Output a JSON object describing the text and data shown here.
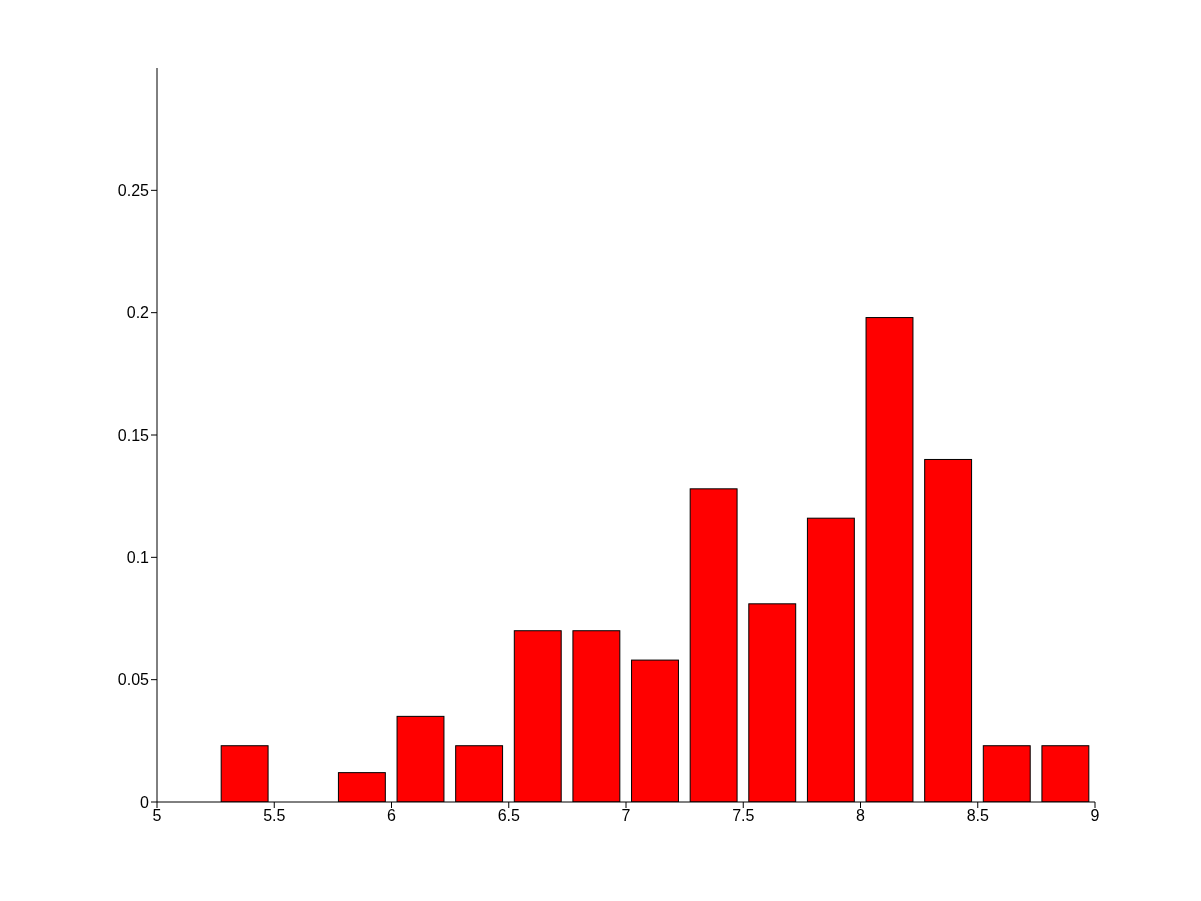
{
  "chart_data": {
    "type": "histogram",
    "bins": [
      5.25,
      5.5,
      5.75,
      6,
      6.25,
      6.5,
      6.75,
      7,
      7.25,
      7.5,
      7.75,
      8,
      8.25,
      8.5,
      8.75,
      9
    ],
    "values": [
      0.023,
      0,
      0.012,
      0.035,
      0.023,
      0.07,
      0.07,
      0.058,
      0.128,
      0.081,
      0.116,
      0.198,
      0.14,
      0.023,
      0.023
    ],
    "color": "#ff0000",
    "xlim": [
      5,
      9
    ],
    "xticks": [
      5,
      5.5,
      6,
      6.5,
      7,
      7.5,
      8,
      8.5,
      9
    ],
    "ylim": [
      0,
      0.3
    ],
    "yticks": [
      0,
      0.05,
      0.1,
      0.15,
      0.2,
      0.25
    ]
  }
}
